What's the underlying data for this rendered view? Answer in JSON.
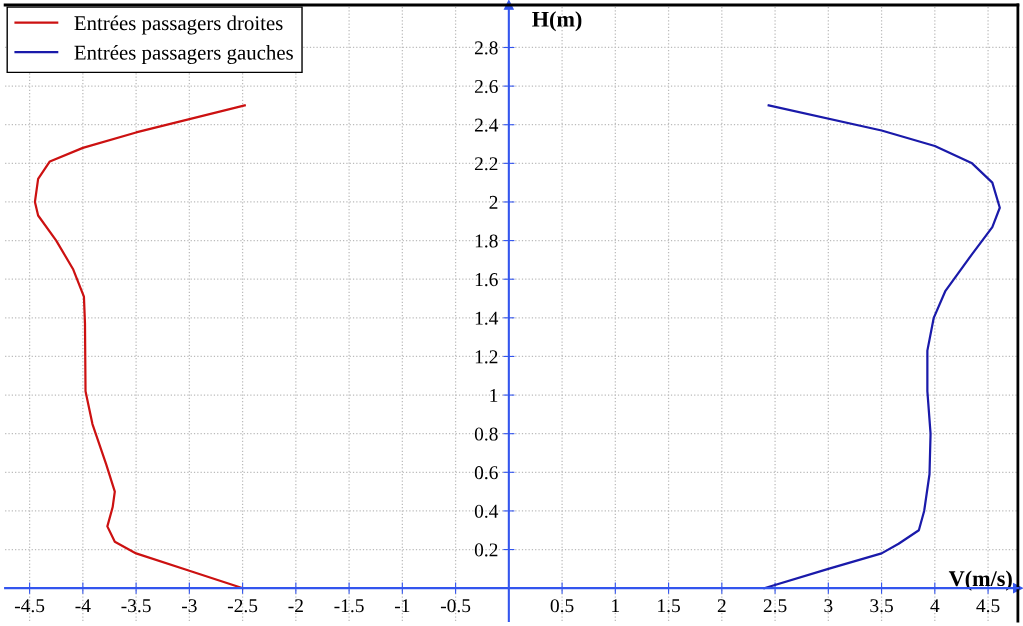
{
  "chart_data": {
    "type": "line",
    "xlabel": "V(m/s)",
    "ylabel": "H(m)",
    "xlim": [
      -4.73,
      4.78
    ],
    "ylim": [
      -0.17,
      3.02
    ],
    "xticks": [
      -4.5,
      -4,
      -3.5,
      -3,
      -2.5,
      -2,
      -1.5,
      -1,
      -0.5,
      0.5,
      1,
      1.5,
      2,
      2.5,
      3,
      3.5,
      4,
      4.5
    ],
    "yticks": [
      0.2,
      0.4,
      0.6,
      0.8,
      1,
      1.2,
      1.4,
      1.6,
      1.8,
      2,
      2.2,
      2.4,
      2.6,
      2.8
    ],
    "grid": true,
    "legend": "top left",
    "marker": "none",
    "line_style": "solid",
    "series": [
      {
        "name": "Entrées passagers droites",
        "color": "#cc1111",
        "x": [
          -2.48,
          -3.5,
          -4,
          -4.31,
          -4.42,
          -4.45,
          -4.42,
          -4.25,
          -4.09,
          -3.99,
          -3.98,
          -3.975,
          -3.91,
          -3.78,
          -3.7,
          -3.72,
          -3.77,
          -3.7,
          -3.5,
          -3,
          -2.5
        ],
        "values": [
          2.5,
          2.36,
          2.28,
          2.21,
          2.12,
          2.0,
          1.93,
          1.8,
          1.65,
          1.51,
          1.37,
          1.02,
          0.85,
          0.64,
          0.5,
          0.42,
          0.32,
          0.24,
          0.18,
          0.09,
          0
        ]
      },
      {
        "name": "Entrées passagers gauches",
        "color": "#1a1aaa",
        "x": [
          2.44,
          3.5,
          4.0,
          4.35,
          4.54,
          4.61,
          4.54,
          4.35,
          4.1,
          3.99,
          3.93,
          3.93,
          3.96,
          3.95,
          3.9,
          3.85,
          3.66,
          3.5,
          3.0,
          2.4
        ],
        "values": [
          2.5,
          2.37,
          2.29,
          2.2,
          2.1,
          1.97,
          1.87,
          1.73,
          1.54,
          1.4,
          1.23,
          1.02,
          0.8,
          0.59,
          0.4,
          0.3,
          0.23,
          0.18,
          0.1,
          0
        ]
      }
    ]
  }
}
